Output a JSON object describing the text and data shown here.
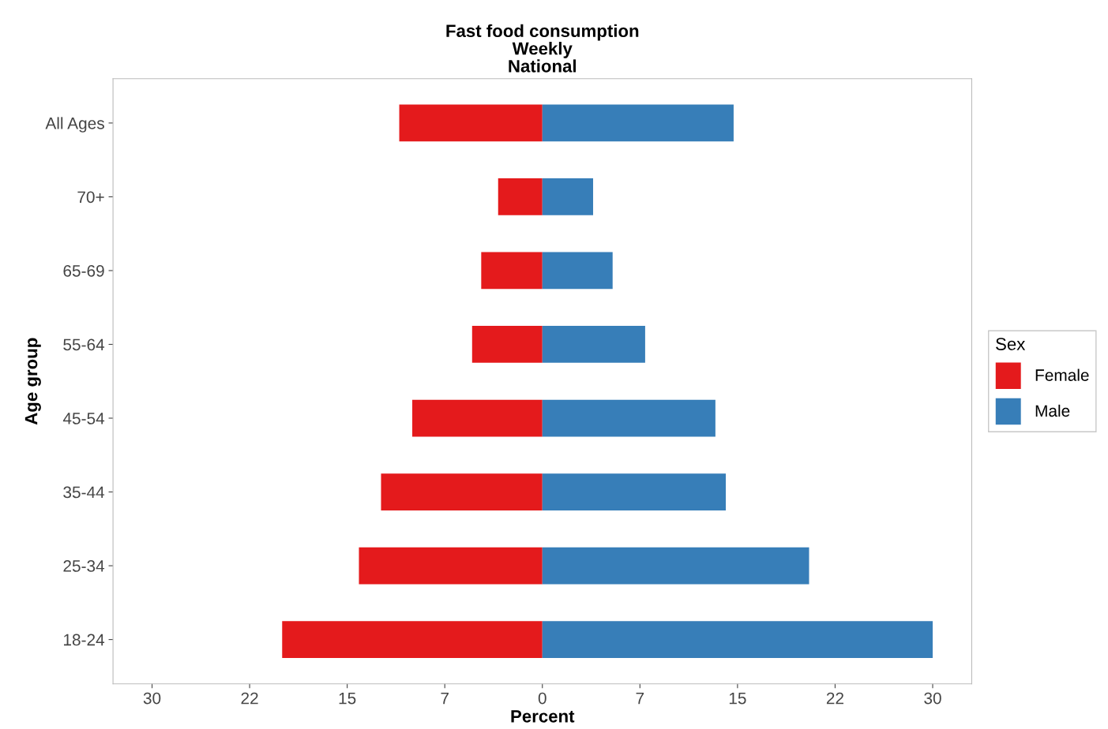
{
  "chart_data": {
    "type": "bar",
    "orientation": "horizontal",
    "title": "Fast food consumption\nWeekly\nNational",
    "xlabel": "Percent",
    "ylabel": "Age group",
    "legend_title": "Sex",
    "legend": "right",
    "grid": false,
    "stacked": true,
    "categories": [
      "All Ages",
      "70+",
      "65-69",
      "55-64",
      "45-54",
      "35-44",
      "25-34",
      "18-24"
    ],
    "series": [
      {
        "name": "Female",
        "color": "#e41a1c",
        "values": [
          -11.0,
          -3.4,
          -4.7,
          -5.4,
          -10.0,
          -12.4,
          -14.1,
          -20.0
        ]
      },
      {
        "name": "Male",
        "color": "#377eb8",
        "values": [
          14.7,
          3.9,
          5.4,
          7.9,
          13.3,
          14.1,
          20.5,
          30.0
        ]
      }
    ],
    "xlim": [
      -33,
      33
    ],
    "xticks": [
      {
        "value": -30,
        "label": "30"
      },
      {
        "value": -22.5,
        "label": "22"
      },
      {
        "value": -15,
        "label": "15"
      },
      {
        "value": -7.5,
        "label": "7"
      },
      0,
      {
        "value": 7.5,
        "label": "7"
      },
      {
        "value": 15,
        "label": "15"
      },
      {
        "value": 22.5,
        "label": "22"
      },
      30
    ]
  }
}
